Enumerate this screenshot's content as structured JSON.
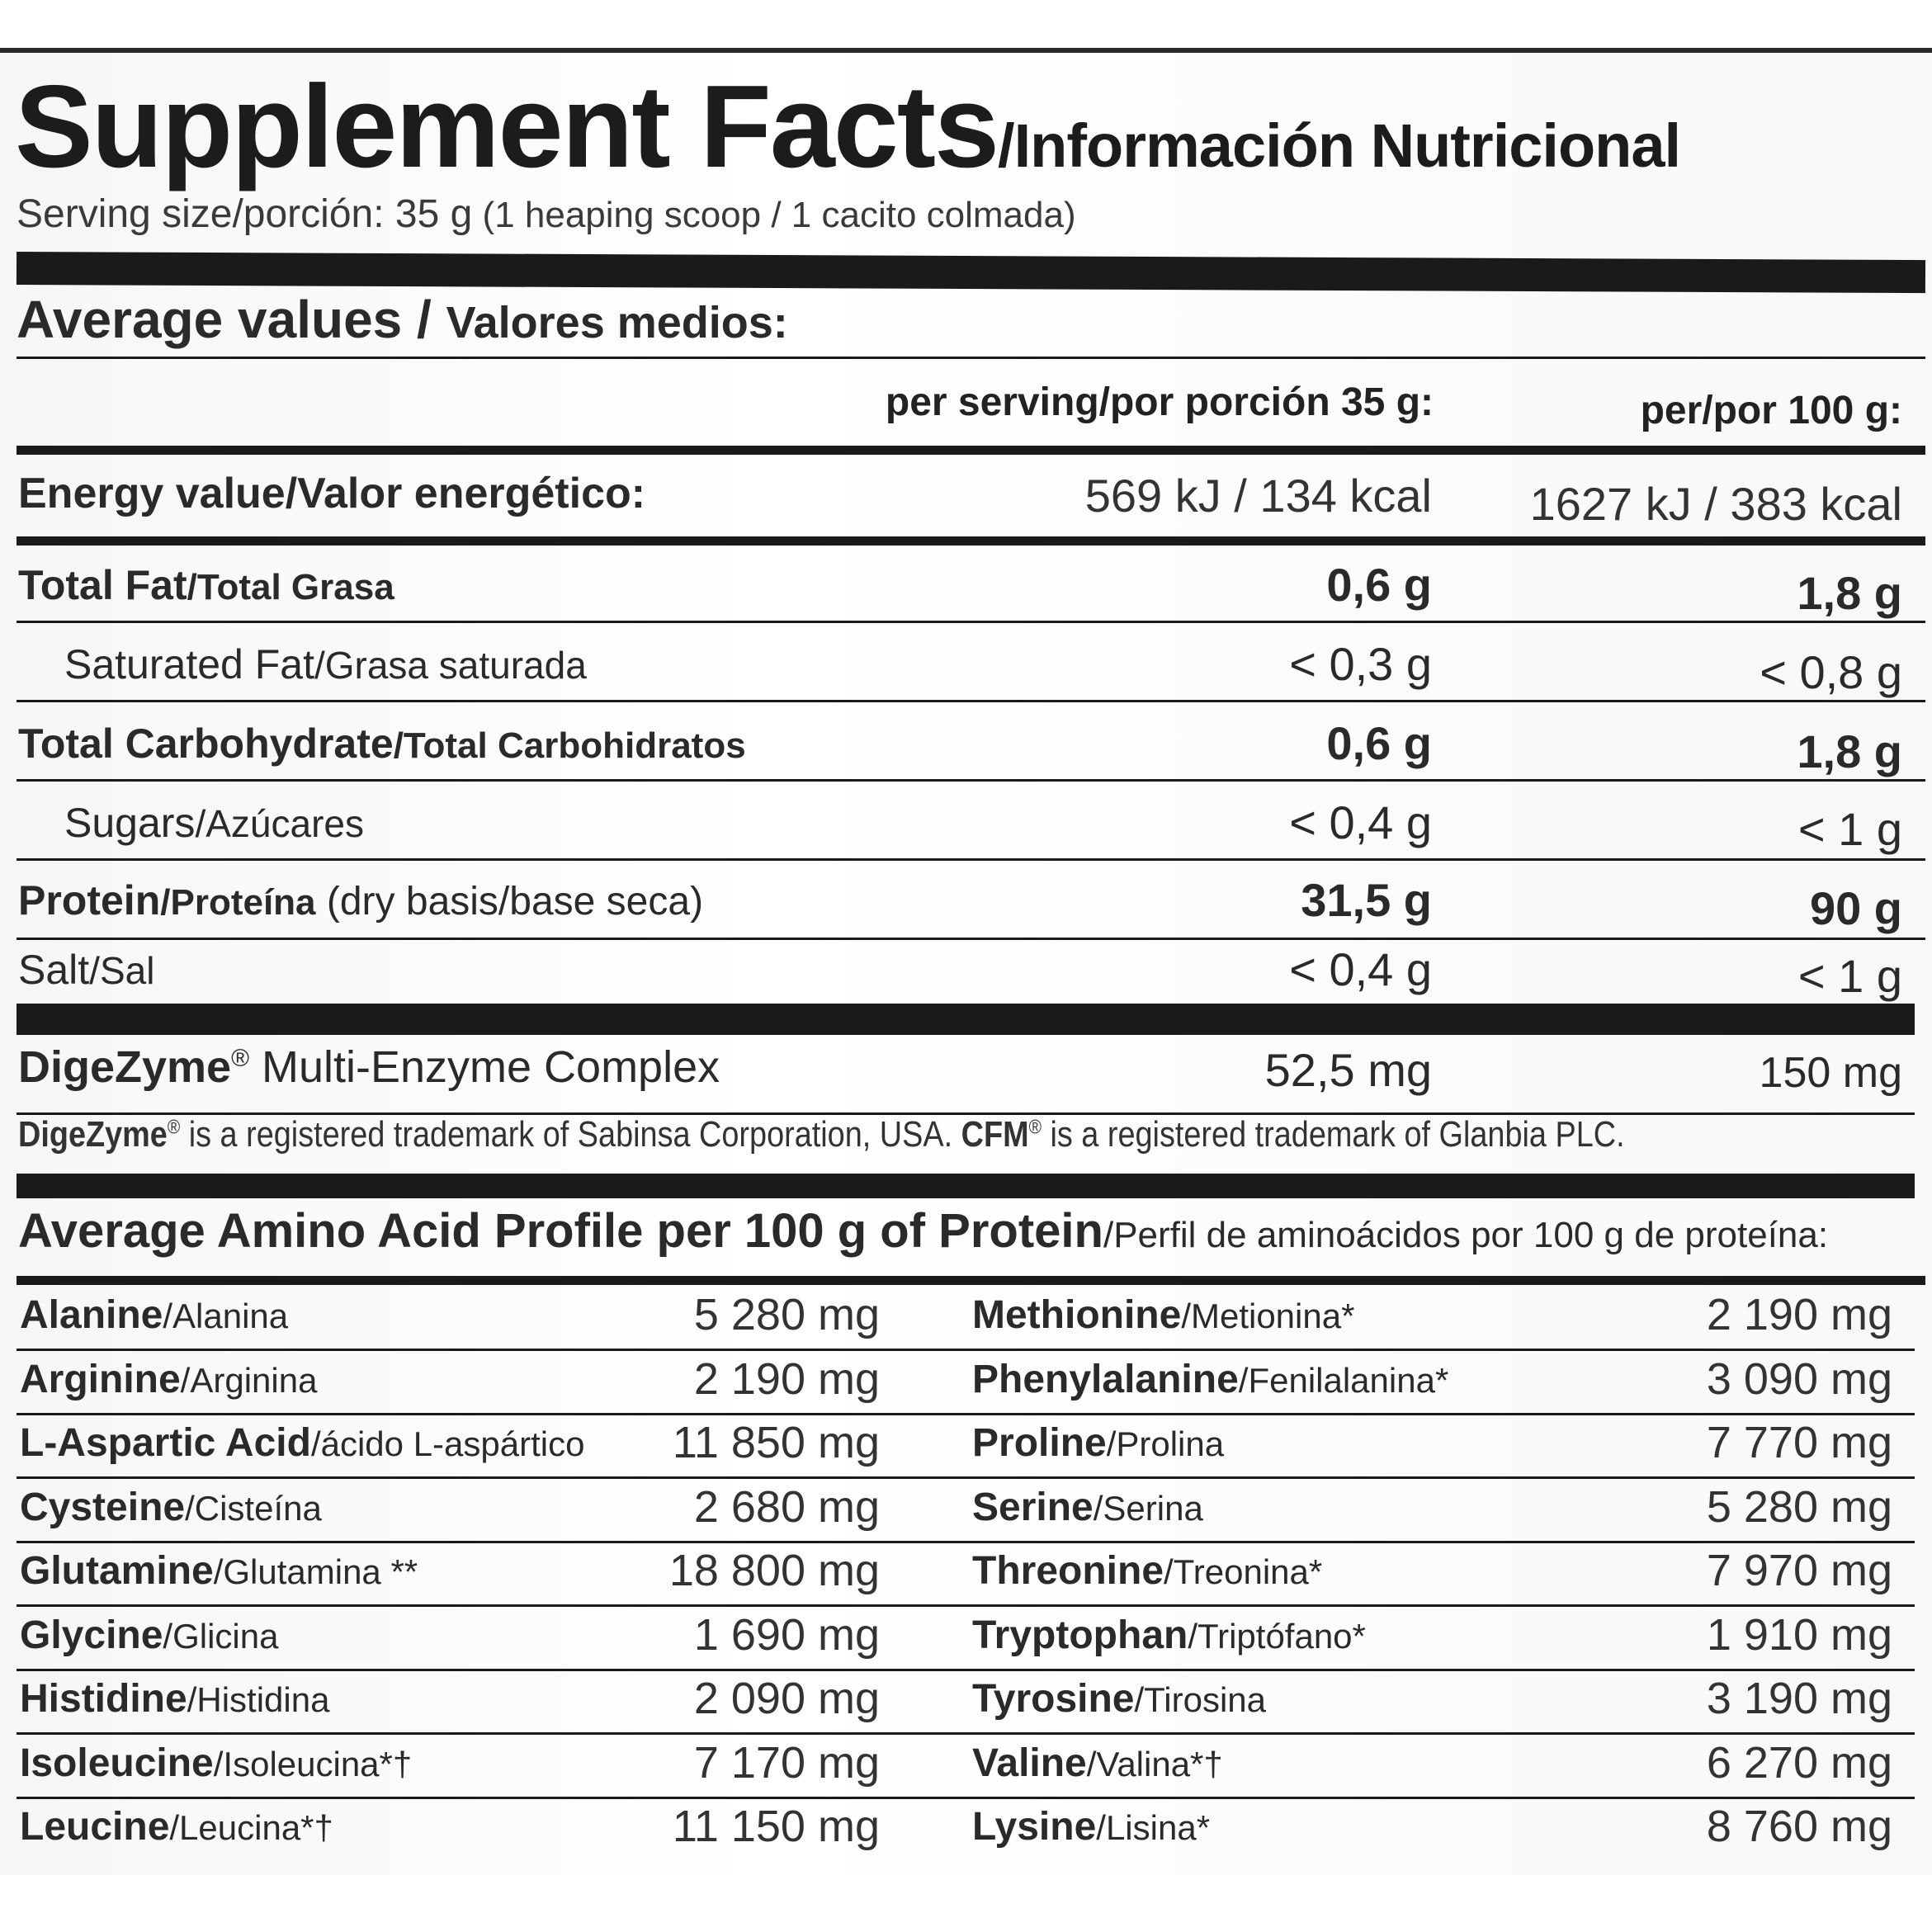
{
  "title": {
    "main": "Supplement Facts",
    "sub": "/Información Nutricional"
  },
  "serving": {
    "label": "Serving size/porción: 35 g",
    "detail": " (1 heaping scoop / 1 cacito colmada)"
  },
  "average": {
    "en": "Average values",
    "sep": " / ",
    "es": "Valores medios:"
  },
  "columns": {
    "per_serving": "per serving/por porción 35 g:",
    "per_100": "per/por 100 g:"
  },
  "energy": {
    "label": "Energy value/Valor energético:",
    "serving": "569 kJ / 134 kcal",
    "per100": "1627 kJ / 383 kcal"
  },
  "nutrients": [
    {
      "en": "Total Fat",
      "es": "/Total Grasa",
      "serving": "0,6 g",
      "per100": "1,8 g"
    },
    {
      "en": "Saturated Fat",
      "es": "/Grasa saturada",
      "serving": "< 0,3 g",
      "per100": "< 0,8 g"
    },
    {
      "en": "Total Carbohydrate",
      "es": "/Total Carbohidratos",
      "serving": "0,6 g",
      "per100": "1,8 g"
    },
    {
      "en": "Sugars",
      "es": "/Azúcares",
      "serving": "< 0,4 g",
      "per100": "< 1 g"
    },
    {
      "en": "Protein",
      "es": "/Proteína",
      "note": " (dry basis/base seca)",
      "serving": "31,5 g",
      "per100": "90 g"
    },
    {
      "en": "Salt",
      "es": "/Sal",
      "serving": "< 0,4 g",
      "per100": "< 1 g"
    }
  ],
  "enzyme": {
    "brand": "DigeZyme",
    "reg": "®",
    "name": " Multi-Enzyme Complex",
    "serving": "52,5 mg",
    "per100": "150 mg"
  },
  "trademark": {
    "brand1": "DigeZyme",
    "reg": "®",
    "text1": " is a registered trademark of Sabinsa Corporation, USA. ",
    "brand2": "CFM",
    "text2": " is a registered trademark of Glanbia PLC."
  },
  "amino_title": {
    "en": "Average Amino Acid Profile per 100 g of Protein",
    "es": "/Perfil de aminoácidos por 100 g de proteína:"
  },
  "amino_left": [
    {
      "en": "Alanine",
      "es": "/Alanina",
      "value": "5 280 mg"
    },
    {
      "en": "Arginine",
      "es": "/Arginina",
      "value": "2 190 mg"
    },
    {
      "en": "L-Aspartic Acid",
      "es": "/ácido L-aspártico",
      "value": "11 850 mg"
    },
    {
      "en": "Cysteine",
      "es": "/Cisteína",
      "value": "2 680 mg"
    },
    {
      "en": "Glutamine",
      "es": "/Glutamina **",
      "value": "18 800 mg"
    },
    {
      "en": "Glycine",
      "es": "/Glicina",
      "value": "1 690 mg"
    },
    {
      "en": "Histidine",
      "es": "/Histidina",
      "value": "2 090 mg"
    },
    {
      "en": "Isoleucine",
      "es": "/Isoleucina*†",
      "value": "7 170 mg"
    },
    {
      "en": "Leucine",
      "es": "/Leucina*†",
      "value": "11 150 mg"
    }
  ],
  "amino_right": [
    {
      "en": "Methionine",
      "es": "/Metionina*",
      "value": "2 190 mg"
    },
    {
      "en": "Phenylalanine",
      "es": "/Fenilalanina*",
      "value": "3 090 mg"
    },
    {
      "en": "Proline",
      "es": "/Prolina",
      "value": "7 770 mg"
    },
    {
      "en": "Serine",
      "es": "/Serina",
      "value": "5 280 mg"
    },
    {
      "en": "Threonine",
      "es": "/Treonina*",
      "value": "7 970 mg"
    },
    {
      "en": "Tryptophan",
      "es": "/Triptófano*",
      "value": "1 910 mg"
    },
    {
      "en": "Tyrosine",
      "es": "/Tirosina",
      "value": "3 190 mg"
    },
    {
      "en": "Valine",
      "es": "/Valina*†",
      "value": "6 270 mg"
    },
    {
      "en": "Lysine",
      "es": "/Lisina*",
      "value": "8 760 mg"
    }
  ]
}
